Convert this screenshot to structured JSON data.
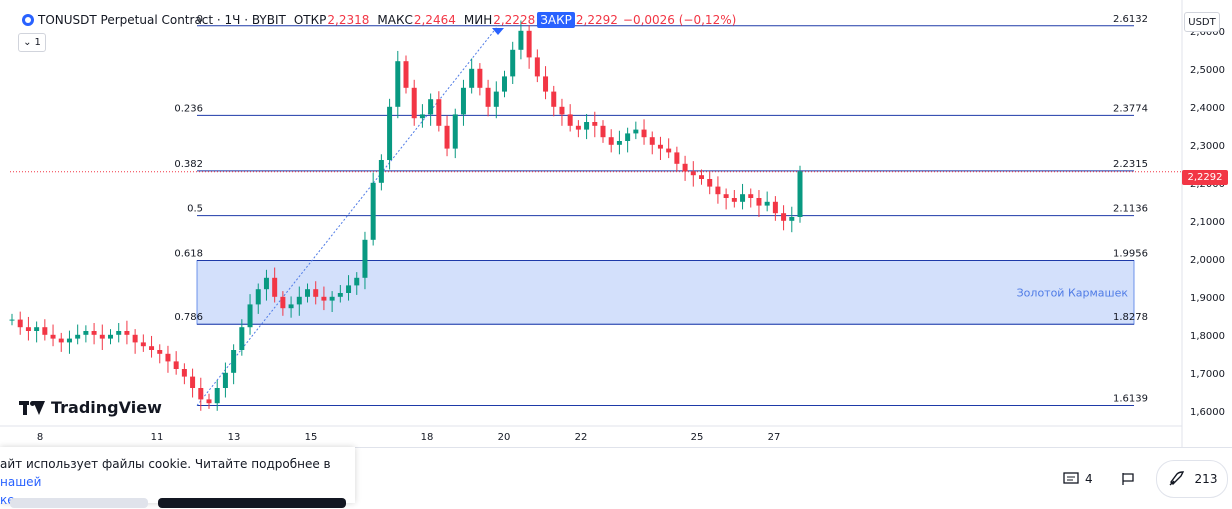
{
  "legend": {
    "symbol": "TONUSDT Perpetual Contract · 1Ч · BYBIT",
    "open_label": "ОТКР",
    "open_value": "2,2318",
    "high_label": "МАКС",
    "high_value": "2,2464",
    "low_label": "МИН",
    "low_value": "2,2228",
    "close_label": "ЗАКР",
    "close_value": "2,2292",
    "change": "−0,0026 (−0,12%)",
    "indicator_count": "1"
  },
  "currency": "USDT",
  "last_price": "2,2292",
  "watermark": "TradingView",
  "chart_data": {
    "type": "candlestick",
    "symbol": "TONUSDT",
    "interval": "1H",
    "ylim": [
      1.56,
      2.66
    ],
    "price_ticks": [
      "2,6000",
      "2,5000",
      "2,4000",
      "2,3000",
      "2,2000",
      "2,1000",
      "2,0000",
      "1,9000",
      "1,8000",
      "1,7000",
      "1,6000"
    ],
    "date_ticks": [
      "8",
      "11",
      "13",
      "15",
      "18",
      "20",
      "22",
      "25",
      "27"
    ],
    "fib_levels": [
      {
        "ratio": "0",
        "price": "2.6132"
      },
      {
        "ratio": "0.236",
        "price": "2.3774"
      },
      {
        "ratio": "0.382",
        "price": "2.2315"
      },
      {
        "ratio": "0.5",
        "price": "2.1136"
      },
      {
        "ratio": "0.618",
        "price": "1.9956"
      },
      {
        "ratio": "0.786",
        "price": "1.8278"
      },
      {
        "ratio": "",
        "price": "1.6139"
      }
    ],
    "zone_label": "Золотой Кармашек",
    "current_price": 2.2292,
    "closes": [
      1.84,
      1.82,
      1.81,
      1.82,
      1.8,
      1.79,
      1.78,
      1.79,
      1.8,
      1.81,
      1.8,
      1.79,
      1.8,
      1.81,
      1.8,
      1.78,
      1.77,
      1.76,
      1.75,
      1.73,
      1.71,
      1.69,
      1.66,
      1.63,
      1.62,
      1.66,
      1.7,
      1.76,
      1.82,
      1.88,
      1.92,
      1.95,
      1.9,
      1.87,
      1.88,
      1.9,
      1.92,
      1.9,
      1.89,
      1.9,
      1.91,
      1.93,
      1.95,
      2.05,
      2.2,
      2.26,
      2.4,
      2.52,
      2.45,
      2.37,
      2.38,
      2.42,
      2.35,
      2.29,
      2.38,
      2.45,
      2.5,
      2.45,
      2.4,
      2.44,
      2.48,
      2.55,
      2.6,
      2.53,
      2.48,
      2.44,
      2.4,
      2.38,
      2.35,
      2.34,
      2.36,
      2.35,
      2.32,
      2.3,
      2.31,
      2.33,
      2.34,
      2.32,
      2.3,
      2.29,
      2.28,
      2.25,
      2.23,
      2.22,
      2.21,
      2.19,
      2.17,
      2.16,
      2.15,
      2.17,
      2.16,
      2.14,
      2.15,
      2.12,
      2.1,
      2.11,
      2.23
    ]
  },
  "cookie": {
    "text": "айт использует файлы cookie. Читайте подробнее в",
    "link1": "нашей",
    "link2": "ке."
  },
  "actions": {
    "comments_count": "4",
    "boost_count": "213"
  }
}
